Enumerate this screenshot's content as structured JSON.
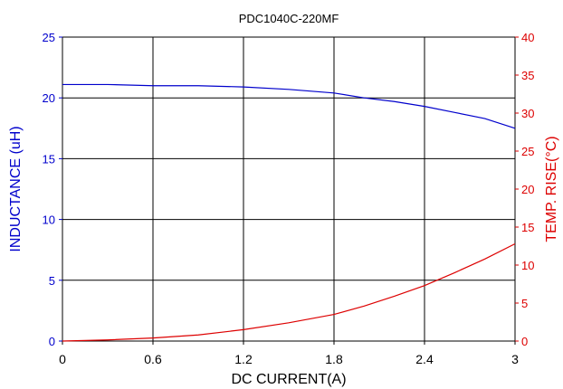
{
  "chart_data": {
    "type": "line",
    "title": "PDC1040C-220MF",
    "xlabel": "DC CURRENT(A)",
    "ylabel": "INDUCTANCE (uH)",
    "y2label": "TEMP. RISE(°C)",
    "xlim": [
      0,
      3
    ],
    "ylim": [
      0,
      25
    ],
    "y2lim": [
      0,
      40
    ],
    "grid": true,
    "x_ticks": [
      0,
      0.6,
      1.2,
      1.8,
      2.4,
      3
    ],
    "x_tick_labels": [
      "0",
      "0.6",
      "1.2",
      "1.8",
      "2.4",
      "3"
    ],
    "y_ticks": [
      0,
      5,
      10,
      15,
      20,
      25
    ],
    "y_tick_labels": [
      "0",
      "5",
      "10",
      "15",
      "20",
      "25"
    ],
    "y2_ticks": [
      0,
      5,
      10,
      15,
      20,
      25,
      30,
      35,
      40
    ],
    "y2_tick_labels": [
      "0",
      "5",
      "10",
      "15",
      "20",
      "25",
      "30",
      "35",
      "40"
    ],
    "series": [
      {
        "axis": "left",
        "color": "#0000cc",
        "x": [
          0,
          0.3,
          0.6,
          0.9,
          1.2,
          1.5,
          1.8,
          2.0,
          2.2,
          2.4,
          2.6,
          2.8,
          3.0
        ],
        "y": [
          21.1,
          21.1,
          21.0,
          21.0,
          20.9,
          20.7,
          20.4,
          20.0,
          19.7,
          19.3,
          18.8,
          18.3,
          17.5
        ]
      },
      {
        "axis": "right",
        "color": "#dd0000",
        "x": [
          0,
          0.3,
          0.6,
          0.9,
          1.2,
          1.5,
          1.8,
          2.0,
          2.2,
          2.4,
          2.6,
          2.8,
          3.0
        ],
        "y": [
          0,
          0.15,
          0.4,
          0.8,
          1.5,
          2.4,
          3.5,
          4.6,
          5.9,
          7.3,
          9.0,
          10.8,
          12.8
        ]
      }
    ]
  },
  "colors": {
    "left_axis": "#0000cc",
    "right_axis": "#dd0000",
    "grid": "#000000"
  }
}
